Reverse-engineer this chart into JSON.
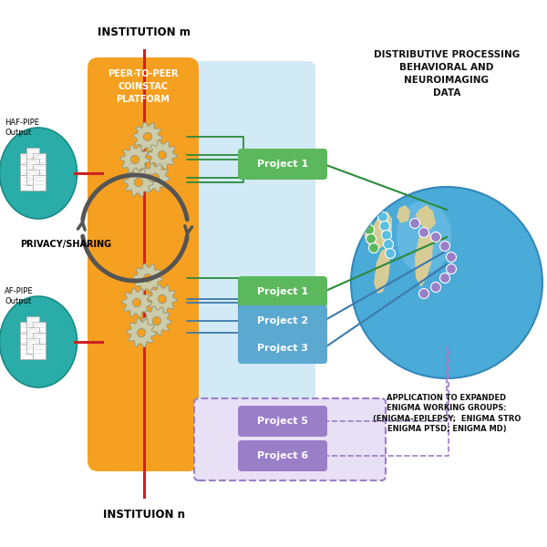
{
  "bg_color": "#ffffff",
  "institution_m_label": "INSTITUTION m",
  "institution_n_label": "INSTITUION n",
  "platform_label": "PEER-TO-PEER\nCOINSTAC\nPLATFORM",
  "privacy_label": "PRIVACY/SHARING",
  "dist_title": "DISTRIBUTIVE PROCESSING\nBEHAVIORAL AND\nNEUROIMAGING\nDATA",
  "app_title": "APPLICATION TO EXPANDED\nENIGMA WORKING GROUPS:\n(ENIGMA-EPILEPSY;  ENIGMA STRO\nENIGMA PTSD; ENIGMA MD)",
  "pipe_label_1": "HAF-PIPE\nOutput",
  "pipe_label_2": "AF-PIPE\nOutput",
  "proj_green1": "Project 1",
  "proj_green2": "Project 1",
  "proj_blue1": "Project 2",
  "proj_blue2": "Project 3",
  "proj_purple1": "Project 5",
  "proj_purple2": "Project 6",
  "orange_color": "#F5A020",
  "green_proj_color": "#5CB85C",
  "blue_proj_color": "#5BA8D0",
  "purple_proj_color": "#9B7EC8",
  "purple_bg": "#E8E0F5",
  "teal_color": "#2AADA8",
  "red_color": "#CC2222",
  "arrow_color": "#555555",
  "globe_blue": "#4AAAD8",
  "globe_land": "#D8CC96",
  "light_blue_bg": "#BAE0F0",
  "green_line": "#2E8B3E",
  "blue_line": "#3E7AAA",
  "white": "#ffffff",
  "black": "#111111"
}
